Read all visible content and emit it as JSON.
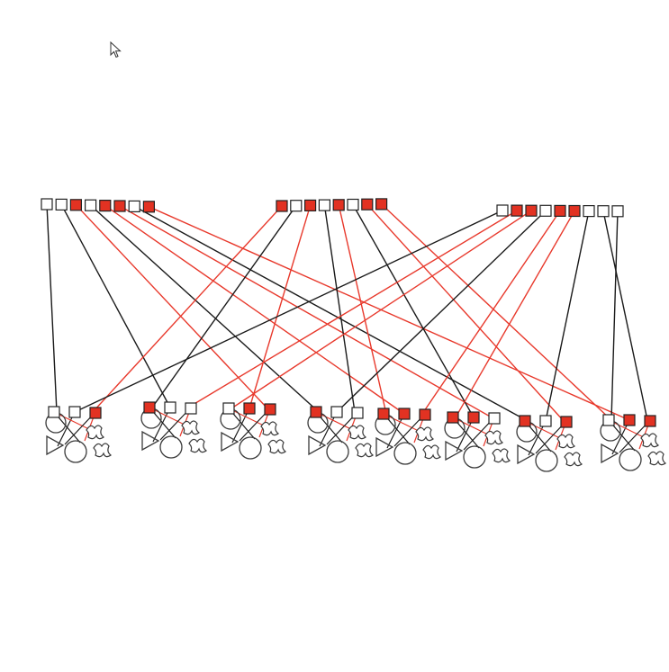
{
  "diagram": {
    "colors": {
      "background": "#ffffff",
      "black_edge": "#1a1a1a",
      "red_edge": "#e8392c",
      "red_fill": "#e23222",
      "white_fill": "#ffffff",
      "outline": "#222222",
      "icon_outline": "#3a3a3a"
    },
    "cursor": {
      "icon": "mouse-pointer-icon"
    },
    "top_groups": [
      {
        "name": "top-group-1",
        "nodes": [
          "white",
          "white",
          "red",
          "white",
          "red",
          "red",
          "white",
          "red"
        ]
      },
      {
        "name": "top-group-2",
        "nodes": [
          "red",
          "white",
          "red",
          "white",
          "red",
          "white",
          "red",
          "red"
        ]
      },
      {
        "name": "top-group-3",
        "nodes": [
          "white",
          "red",
          "red",
          "white",
          "red",
          "red",
          "white",
          "white",
          "white"
        ]
      }
    ],
    "bottom_clusters": [
      {
        "name": "bottom-cluster-1",
        "nodes": [
          "white",
          "white",
          "red"
        ]
      },
      {
        "name": "bottom-cluster-2",
        "nodes": [
          "red",
          "white",
          "white"
        ]
      },
      {
        "name": "bottom-cluster-3",
        "nodes": [
          "white",
          "red",
          "red"
        ]
      },
      {
        "name": "bottom-cluster-4",
        "nodes": [
          "red",
          "white",
          "white"
        ]
      },
      {
        "name": "bottom-cluster-5",
        "nodes": [
          "red",
          "red",
          "red"
        ]
      },
      {
        "name": "bottom-cluster-6",
        "nodes": [
          "red",
          "red",
          "white"
        ]
      },
      {
        "name": "bottom-cluster-7",
        "nodes": [
          "red",
          "white",
          "red"
        ]
      },
      {
        "name": "bottom-cluster-8",
        "nodes": [
          "white",
          "red",
          "red"
        ]
      }
    ],
    "edges": [
      {
        "from": "top-group-1-node-1",
        "to": "bottom-cluster-1",
        "color": "black"
      },
      {
        "from": "top-group-1-node-2",
        "to": "bottom-cluster-2",
        "color": "black"
      },
      {
        "from": "top-group-1-node-3",
        "to": "bottom-cluster-3",
        "color": "red"
      },
      {
        "from": "top-group-1-node-4",
        "to": "bottom-cluster-4",
        "color": "black"
      },
      {
        "from": "top-group-1-node-5",
        "to": "bottom-cluster-5",
        "color": "red"
      },
      {
        "from": "top-group-1-node-6",
        "to": "bottom-cluster-6",
        "color": "red"
      },
      {
        "from": "top-group-1-node-7",
        "to": "bottom-cluster-7",
        "color": "black"
      },
      {
        "from": "top-group-1-node-8",
        "to": "bottom-cluster-8",
        "color": "red"
      },
      {
        "from": "top-group-2-node-1",
        "to": "bottom-cluster-1",
        "color": "red"
      },
      {
        "from": "top-group-2-node-2",
        "to": "bottom-cluster-2",
        "color": "black"
      },
      {
        "from": "top-group-2-node-3",
        "to": "bottom-cluster-3",
        "color": "red"
      },
      {
        "from": "top-group-2-node-4",
        "to": "bottom-cluster-4",
        "color": "black"
      },
      {
        "from": "top-group-2-node-5",
        "to": "bottom-cluster-5",
        "color": "red"
      },
      {
        "from": "top-group-2-node-6",
        "to": "bottom-cluster-6",
        "color": "black"
      },
      {
        "from": "top-group-2-node-7",
        "to": "bottom-cluster-7",
        "color": "red"
      },
      {
        "from": "top-group-2-node-8",
        "to": "bottom-cluster-8",
        "color": "red"
      },
      {
        "from": "top-group-3-node-1",
        "to": "bottom-cluster-1",
        "color": "black"
      },
      {
        "from": "top-group-3-node-2",
        "to": "bottom-cluster-2",
        "color": "red"
      },
      {
        "from": "top-group-3-node-3",
        "to": "bottom-cluster-3",
        "color": "red"
      },
      {
        "from": "top-group-3-node-4",
        "to": "bottom-cluster-4",
        "color": "black"
      },
      {
        "from": "top-group-3-node-5",
        "to": "bottom-cluster-5",
        "color": "red"
      },
      {
        "from": "top-group-3-node-6",
        "to": "bottom-cluster-6",
        "color": "red"
      },
      {
        "from": "top-group-3-node-7",
        "to": "bottom-cluster-7",
        "color": "black"
      },
      {
        "from": "top-group-3-node-8",
        "to": "bottom-cluster-8",
        "color": "black"
      },
      {
        "from": "top-group-3-node-9",
        "to": "bottom-cluster-8",
        "color": "black"
      }
    ]
  }
}
